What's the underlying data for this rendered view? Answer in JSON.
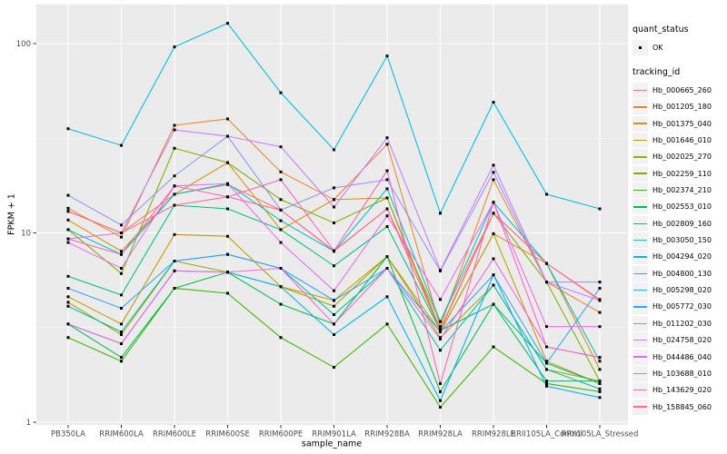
{
  "figure": {
    "bg": "#FFFFFF",
    "panel_bg": "#EBEBEB",
    "grid_color": "#FFFFFF",
    "tick_mark_color": "#333333",
    "tick_label_color": "#4D4D4D",
    "legend_key_bg": "#F2F2F2",
    "point_color": "#000000"
  },
  "axes": {
    "x_title": "sample_name",
    "y_title": "FPKM + 1"
  },
  "legend": {
    "quant_status_title": "quant_status",
    "quant_status_items": [
      {
        "label": "OK"
      }
    ],
    "tracking_title": "tracking_id"
  },
  "chart_data": {
    "type": "line",
    "title": "",
    "xlabel": "sample_name",
    "ylabel": "FPKM + 1",
    "y_scale": "log10",
    "grid": true,
    "legend_position": "right",
    "y_ticks": [
      {
        "value": 1,
        "label": "1"
      },
      {
        "value": 10,
        "label": "10"
      },
      {
        "value": 100,
        "label": "100"
      }
    ],
    "y_minor_ticks": [
      3.1623,
      31.623
    ],
    "ylim": [
      0.95,
      160
    ],
    "categories": [
      "PB350LA",
      "RRIM600LA",
      "RRIM600LE",
      "RRIM600SE",
      "RRIM600PE",
      "RRIM901LA",
      "RRIM928BA",
      "RRIM928LA",
      "RRIM928LE",
      "RRII105LA_Control",
      "RRII105LA_Stressed"
    ],
    "series": [
      {
        "name": "Hb_000665_260",
        "color": "#F8766D",
        "values": [
          13.0,
          10.0,
          16.0,
          18.0,
          13.2,
          8.0,
          13.4,
          3.4,
          12.7,
          6.9,
          4.4
        ]
      },
      {
        "name": "Hb_001205_180",
        "color": "#EA8331",
        "values": [
          13.5,
          9.5,
          37.0,
          40.0,
          21.0,
          15.0,
          29.4,
          3.2,
          19.1,
          5.5,
          3.8
        ]
      },
      {
        "name": "Hb_001375_040",
        "color": "#D89000",
        "values": [
          11.7,
          8.0,
          16.0,
          23.5,
          10.4,
          15.0,
          15.3,
          3.0,
          9.9,
          6.9,
          1.9
        ]
      },
      {
        "name": "Hb_001646_010",
        "color": "#C09B00",
        "values": [
          4.6,
          3.3,
          9.8,
          9.6,
          5.2,
          4.4,
          7.5,
          3.0,
          9.9,
          2.1,
          1.6
        ]
      },
      {
        "name": "Hb_002025_270",
        "color": "#A3A500",
        "values": [
          4.3,
          2.9,
          7.1,
          6.2,
          5.2,
          4.1,
          7.5,
          2.8,
          5.3,
          1.9,
          1.65
        ]
      },
      {
        "name": "Hb_002259_110",
        "color": "#7CAE00",
        "values": [
          10.4,
          6.1,
          28.0,
          23.5,
          15.0,
          11.3,
          15.3,
          3.1,
          12.7,
          5.5,
          1.65
        ]
      },
      {
        "name": "Hb_002374_210",
        "color": "#39B600",
        "values": [
          2.8,
          2.1,
          5.1,
          4.8,
          2.8,
          1.95,
          3.3,
          1.2,
          2.5,
          1.6,
          1.45
        ]
      },
      {
        "name": "Hb_002553_010",
        "color": "#00BB4E",
        "values": [
          3.3,
          2.2,
          5.1,
          6.2,
          4.2,
          3.3,
          7.5,
          1.45,
          4.2,
          1.65,
          1.65
        ]
      },
      {
        "name": "Hb_002809_160",
        "color": "#00BF7D",
        "values": [
          5.9,
          4.7,
          14.0,
          13.4,
          10.4,
          6.7,
          10.8,
          3.05,
          4.2,
          2.05,
          1.6
        ]
      },
      {
        "name": "Hb_003050_150",
        "color": "#00C1A3",
        "values": [
          4.1,
          3.0,
          7.1,
          7.7,
          6.5,
          3.7,
          6.5,
          2.4,
          5.3,
          1.9,
          1.5
        ]
      },
      {
        "name": "Hb_004294_020",
        "color": "#00BFC4",
        "values": [
          10.4,
          7.7,
          16.0,
          18.2,
          11.6,
          8.0,
          17.1,
          3.4,
          14.5,
          6.9,
          2.1
        ]
      },
      {
        "name": "Hb_004800_130",
        "color": "#00BAE0",
        "values": [
          35.5,
          29.0,
          96.0,
          128.0,
          55.0,
          27.5,
          86.0,
          12.7,
          49.0,
          16.0,
          13.4
        ]
      },
      {
        "name": "Hb_005298_020",
        "color": "#00B0F6",
        "values": [
          3.3,
          2.6,
          6.3,
          6.2,
          5.2,
          2.9,
          4.6,
          1.3,
          6.0,
          1.55,
          1.35
        ]
      },
      {
        "name": "Hb_005772_030",
        "color": "#35A2FF",
        "values": [
          5.1,
          4.0,
          7.1,
          7.7,
          6.5,
          4.4,
          6.5,
          3.0,
          6.0,
          2.05,
          5.1
        ]
      },
      {
        "name": "Hb_011202_030",
        "color": "#9590FF",
        "values": [
          15.8,
          11.0,
          20.0,
          32.4,
          13.2,
          17.3,
          19.1,
          6.3,
          20.9,
          5.5,
          5.5
        ]
      },
      {
        "name": "Hb_024758_020",
        "color": "#C77CFF",
        "values": [
          9.3,
          10.0,
          35.0,
          32.4,
          28.5,
          13.7,
          31.8,
          6.35,
          22.8,
          5.5,
          4.4
        ]
      },
      {
        "name": "Hb_044486_040",
        "color": "#E76BF3",
        "values": [
          8.9,
          6.5,
          17.7,
          18.2,
          8.9,
          4.95,
          12.3,
          4.45,
          14.5,
          3.2,
          3.2
        ]
      },
      {
        "name": "Hb_103688_010",
        "color": "#FA62DB",
        "values": [
          3.3,
          2.6,
          6.3,
          6.2,
          6.5,
          3.3,
          6.5,
          2.75,
          7.3,
          2.5,
          2.2
        ]
      },
      {
        "name": "Hb_143629_020",
        "color": "#FF62BC",
        "values": [
          9.3,
          7.7,
          17.7,
          15.5,
          19.1,
          8.05,
          21.3,
          1.6,
          14.5,
          2.5,
          2.2
        ]
      },
      {
        "name": "Hb_158845_060",
        "color": "#FF6A98",
        "values": [
          13.0,
          10.0,
          14.0,
          15.5,
          13.2,
          8.05,
          13.4,
          3.05,
          12.7,
          6.9,
          4.45
        ]
      }
    ]
  }
}
